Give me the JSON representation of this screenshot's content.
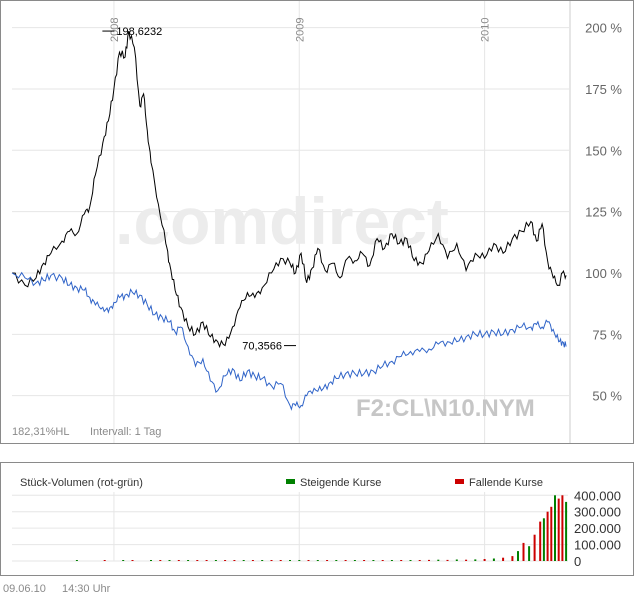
{
  "chart_data": [
    {
      "type": "line",
      "title": "",
      "xlabel": "",
      "ylabel": "",
      "ylim": [
        36,
        208
      ],
      "ytick_values": [
        50,
        75,
        100,
        125,
        150,
        175,
        200
      ],
      "ytick_labels": [
        "50 %",
        "75 %",
        "100 %",
        "125 %",
        "150 %",
        "175 %",
        "200 %"
      ],
      "xlim": [
        2007.45,
        2010.45
      ],
      "year_labels": [
        {
          "year": 2008,
          "label": "2008"
        },
        {
          "year": 2009,
          "label": "2009"
        },
        {
          "year": 2010,
          "label": "2010"
        }
      ],
      "grid": true,
      "annotations": {
        "max_label": "198,6232",
        "max_x": 2007.97,
        "max_y": 198.6,
        "min_label": "70,3566",
        "min_x": 2008.95,
        "min_y": 70.4
      },
      "watermark": ".comdirect",
      "symbol": "F2:CL\\N10.NYM",
      "footer_left": "182,31%HL",
      "footer_interval": "Intervall: 1 Tag",
      "series": [
        {
          "color": "#000000",
          "x": [
            2007.45,
            2007.52,
            2007.58,
            2007.62,
            2007.66,
            2007.72,
            2007.76,
            2007.8,
            2007.84,
            2007.87,
            2007.9,
            2007.94,
            2007.97,
            2008.0,
            2008.03,
            2008.06,
            2008.08,
            2008.11,
            2008.14,
            2008.16,
            2008.18,
            2008.2,
            2008.24,
            2008.28,
            2008.3,
            2008.33,
            2008.36,
            2008.4,
            2008.44,
            2008.48,
            2008.52,
            2008.56,
            2008.6,
            2008.64,
            2008.68,
            2008.72,
            2008.76,
            2008.8,
            2008.85,
            2008.9,
            2008.95,
            2008.98,
            2009.01,
            2009.04,
            2009.07,
            2009.1,
            2009.14,
            2009.18,
            2009.22,
            2009.26,
            2009.3,
            2009.34,
            2009.38,
            2009.42,
            2009.46,
            2009.5,
            2009.54,
            2009.58,
            2009.62,
            2009.66,
            2009.7,
            2009.75,
            2009.8,
            2009.85,
            2009.9,
            2009.95,
            2010.0,
            2010.05,
            2010.1,
            2010.15,
            2010.2,
            2010.25,
            2010.28,
            2010.31,
            2010.34,
            2010.37,
            2010.4,
            2010.42,
            2010.44
          ],
          "y": [
            100,
            95,
            98,
            104,
            108,
            113,
            117,
            116,
            124,
            127,
            140,
            153,
            162,
            175,
            190,
            188,
            198.6,
            192,
            168,
            173,
            158,
            145,
            128,
            112,
            104,
            93,
            86,
            78,
            75,
            80,
            74,
            72,
            70.4,
            78,
            86,
            92,
            90,
            94,
            100,
            106,
            104,
            100,
            108,
            96,
            102,
            110,
            101,
            104,
            98,
            106,
            105,
            108,
            103,
            114,
            110,
            116,
            112,
            114,
            105,
            104,
            109,
            116,
            106,
            112,
            101,
            108,
            106,
            112,
            108,
            114,
            117,
            121,
            113,
            120,
            105,
            98,
            95,
            100,
            99
          ]
        },
        {
          "color": "#3064c8",
          "x": [
            2007.45,
            2007.52,
            2007.58,
            2007.62,
            2007.66,
            2007.72,
            2007.76,
            2007.8,
            2007.84,
            2007.87,
            2007.9,
            2007.94,
            2007.97,
            2008.0,
            2008.03,
            2008.06,
            2008.1,
            2008.14,
            2008.18,
            2008.22,
            2008.26,
            2008.3,
            2008.33,
            2008.36,
            2008.4,
            2008.44,
            2008.48,
            2008.52,
            2008.56,
            2008.6,
            2008.64,
            2008.68,
            2008.72,
            2008.76,
            2008.8,
            2008.85,
            2008.9,
            2008.95,
            2008.98,
            2009.01,
            2009.04,
            2009.08,
            2009.12,
            2009.16,
            2009.2,
            2009.25,
            2009.3,
            2009.35,
            2009.4,
            2009.45,
            2009.5,
            2009.55,
            2009.6,
            2009.65,
            2009.7,
            2009.75,
            2009.8,
            2009.85,
            2009.9,
            2009.95,
            2010.0,
            2010.05,
            2010.1,
            2010.15,
            2010.2,
            2010.25,
            2010.28,
            2010.31,
            2010.34,
            2010.37,
            2010.4,
            2010.42,
            2010.44
          ],
          "y": [
            100,
            98,
            96,
            97,
            99,
            98,
            95,
            94,
            93,
            90,
            87,
            86,
            84,
            88,
            90,
            91,
            92,
            91,
            87,
            83,
            82,
            80,
            76,
            78,
            70,
            62,
            65,
            56,
            52,
            58,
            61,
            56,
            60,
            58,
            57,
            54,
            55,
            46,
            46,
            46,
            50,
            53,
            52,
            55,
            57,
            59,
            59,
            59,
            60,
            62,
            64,
            66,
            68,
            68,
            69,
            71,
            72,
            72,
            74,
            75,
            75,
            76,
            75,
            77,
            78,
            78,
            79,
            78,
            80,
            77,
            72,
            72,
            70
          ]
        }
      ]
    },
    {
      "type": "bar",
      "title": "Stück-Volumen (rot-grün)",
      "legend": [
        {
          "name": "Steigende Kurse",
          "color": "#008000"
        },
        {
          "name": "Fallende Kurse",
          "color": "#cc0000"
        }
      ],
      "ylim": [
        0,
        420000
      ],
      "ytick_values": [
        0,
        100000,
        200000,
        300000,
        400000
      ],
      "ytick_labels": [
        "0",
        "100.000",
        "200.000",
        "300.000",
        "400.000"
      ],
      "xlim": [
        2007.45,
        2010.45
      ],
      "x": [
        2007.8,
        2007.95,
        2008.05,
        2008.1,
        2008.2,
        2008.25,
        2008.3,
        2008.35,
        2008.4,
        2008.45,
        2008.5,
        2008.55,
        2008.6,
        2008.65,
        2008.7,
        2008.75,
        2008.8,
        2008.85,
        2008.9,
        2008.95,
        2009.0,
        2009.05,
        2009.1,
        2009.15,
        2009.2,
        2009.25,
        2009.3,
        2009.35,
        2009.4,
        2009.45,
        2009.5,
        2009.55,
        2009.6,
        2009.65,
        2009.7,
        2009.75,
        2009.8,
        2009.85,
        2009.9,
        2009.95,
        2010.0,
        2010.05,
        2010.1,
        2010.15,
        2010.18,
        2010.21,
        2010.24,
        2010.27,
        2010.3,
        2010.32,
        2010.34,
        2010.36,
        2010.38,
        2010.4,
        2010.42,
        2010.44
      ],
      "values": [
        2000,
        2000,
        3000,
        2000,
        3000,
        4000,
        2000,
        3000,
        2000,
        3000,
        4000,
        3000,
        2000,
        3000,
        4000,
        3000,
        3000,
        4000,
        3000,
        5000,
        3000,
        4000,
        3000,
        5000,
        4000,
        3000,
        4000,
        5000,
        4000,
        6000,
        5000,
        6000,
        5000,
        6000,
        7000,
        8000,
        7000,
        9000,
        8000,
        10000,
        12000,
        15000,
        20000,
        30000,
        60000,
        110000,
        90000,
        160000,
        240000,
        260000,
        300000,
        330000,
        400000,
        380000,
        400000,
        360000
      ],
      "falling": [
        false,
        true,
        false,
        true,
        false,
        true,
        false,
        true,
        false,
        true,
        true,
        false,
        true,
        true,
        false,
        true,
        false,
        true,
        true,
        false,
        false,
        true,
        false,
        true,
        false,
        true,
        false,
        true,
        false,
        true,
        false,
        true,
        false,
        true,
        true,
        false,
        true,
        false,
        true,
        false,
        true,
        false,
        true,
        true,
        false,
        true,
        false,
        true,
        true,
        false,
        true,
        true,
        false,
        true,
        true,
        false
      ]
    }
  ],
  "footer": {
    "date": "09.06.10",
    "time": "14:30 Uhr"
  }
}
